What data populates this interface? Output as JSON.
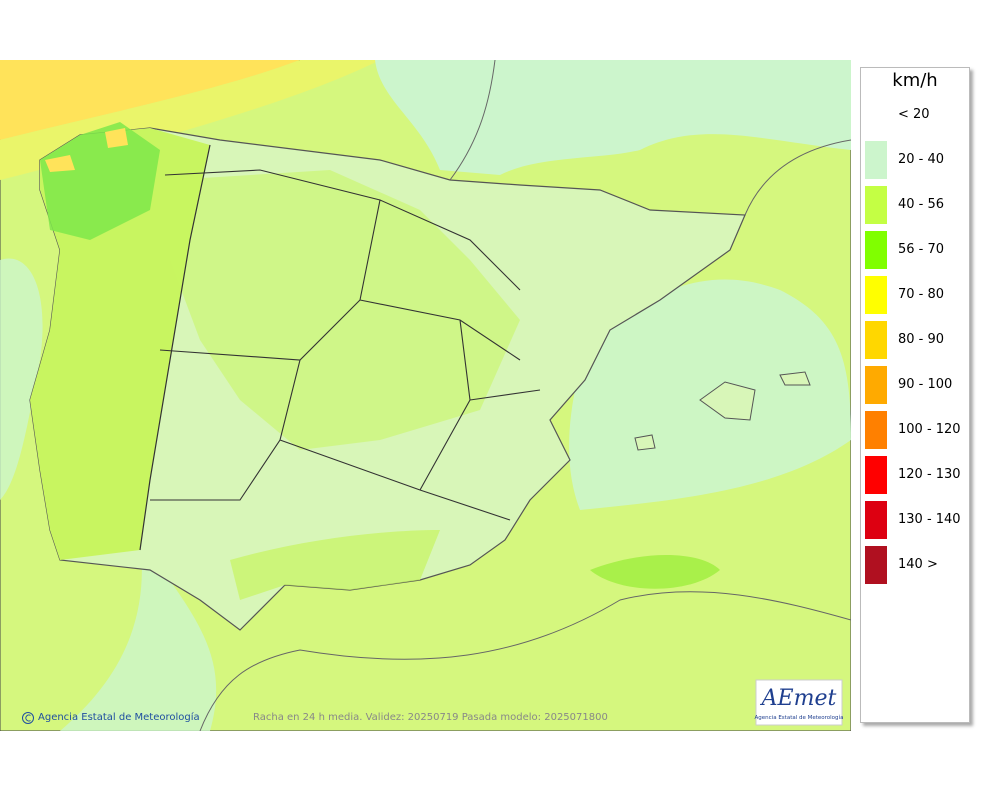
{
  "unit": "km/h",
  "legend": [
    {
      "label": "< 20",
      "color": null
    },
    {
      "label": "20 - 40",
      "color": "#ccf5cc"
    },
    {
      "label": "40 - 56",
      "color": "#c4ff44"
    },
    {
      "label": "56 - 70",
      "color": "#80ff00"
    },
    {
      "label": "70 - 80",
      "color": "#ffff00"
    },
    {
      "label": "80 - 90",
      "color": "#ffd700"
    },
    {
      "label": "90 - 100",
      "color": "#ffaa00"
    },
    {
      "label": "100 - 120",
      "color": "#ff8000"
    },
    {
      "label": "120 - 130",
      "color": "#ff0000"
    },
    {
      "label": "130 - 140",
      "color": "#dd0011"
    },
    {
      "label": "140 >",
      "color": "#b01020"
    }
  ],
  "footer": {
    "agency": "Agencia Estatal de Meteorología",
    "caption": "Racha en 24 h media. Validez: 20250719 Pasada modelo: 2025071800"
  },
  "logo": {
    "name": "AEmet",
    "subtitle": "Agencia Estatal de Meteorología"
  }
}
